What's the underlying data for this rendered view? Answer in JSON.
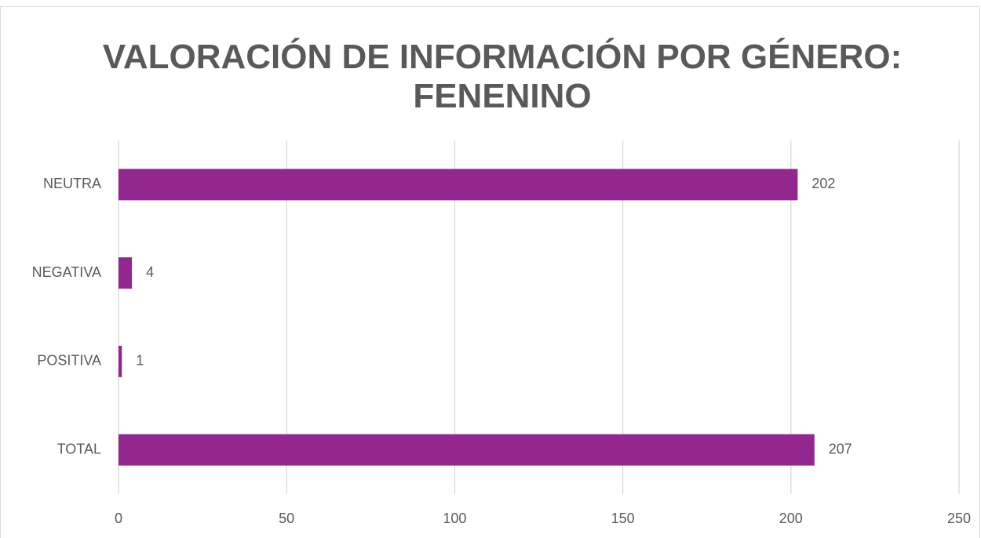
{
  "chart_data": {
    "type": "barh",
    "title": "VALORACIÓN DE INFORMACIÓN POR GÉNERO: FENENINO",
    "categories": [
      "NEUTRA",
      "NEGATIVA",
      "POSITIVA",
      "TOTAL"
    ],
    "values": [
      202,
      4,
      1,
      207
    ],
    "color": "#92278f",
    "xlim": [
      0,
      250
    ],
    "xticks": [
      0,
      50,
      100,
      150,
      200,
      250
    ],
    "grid": true
  }
}
